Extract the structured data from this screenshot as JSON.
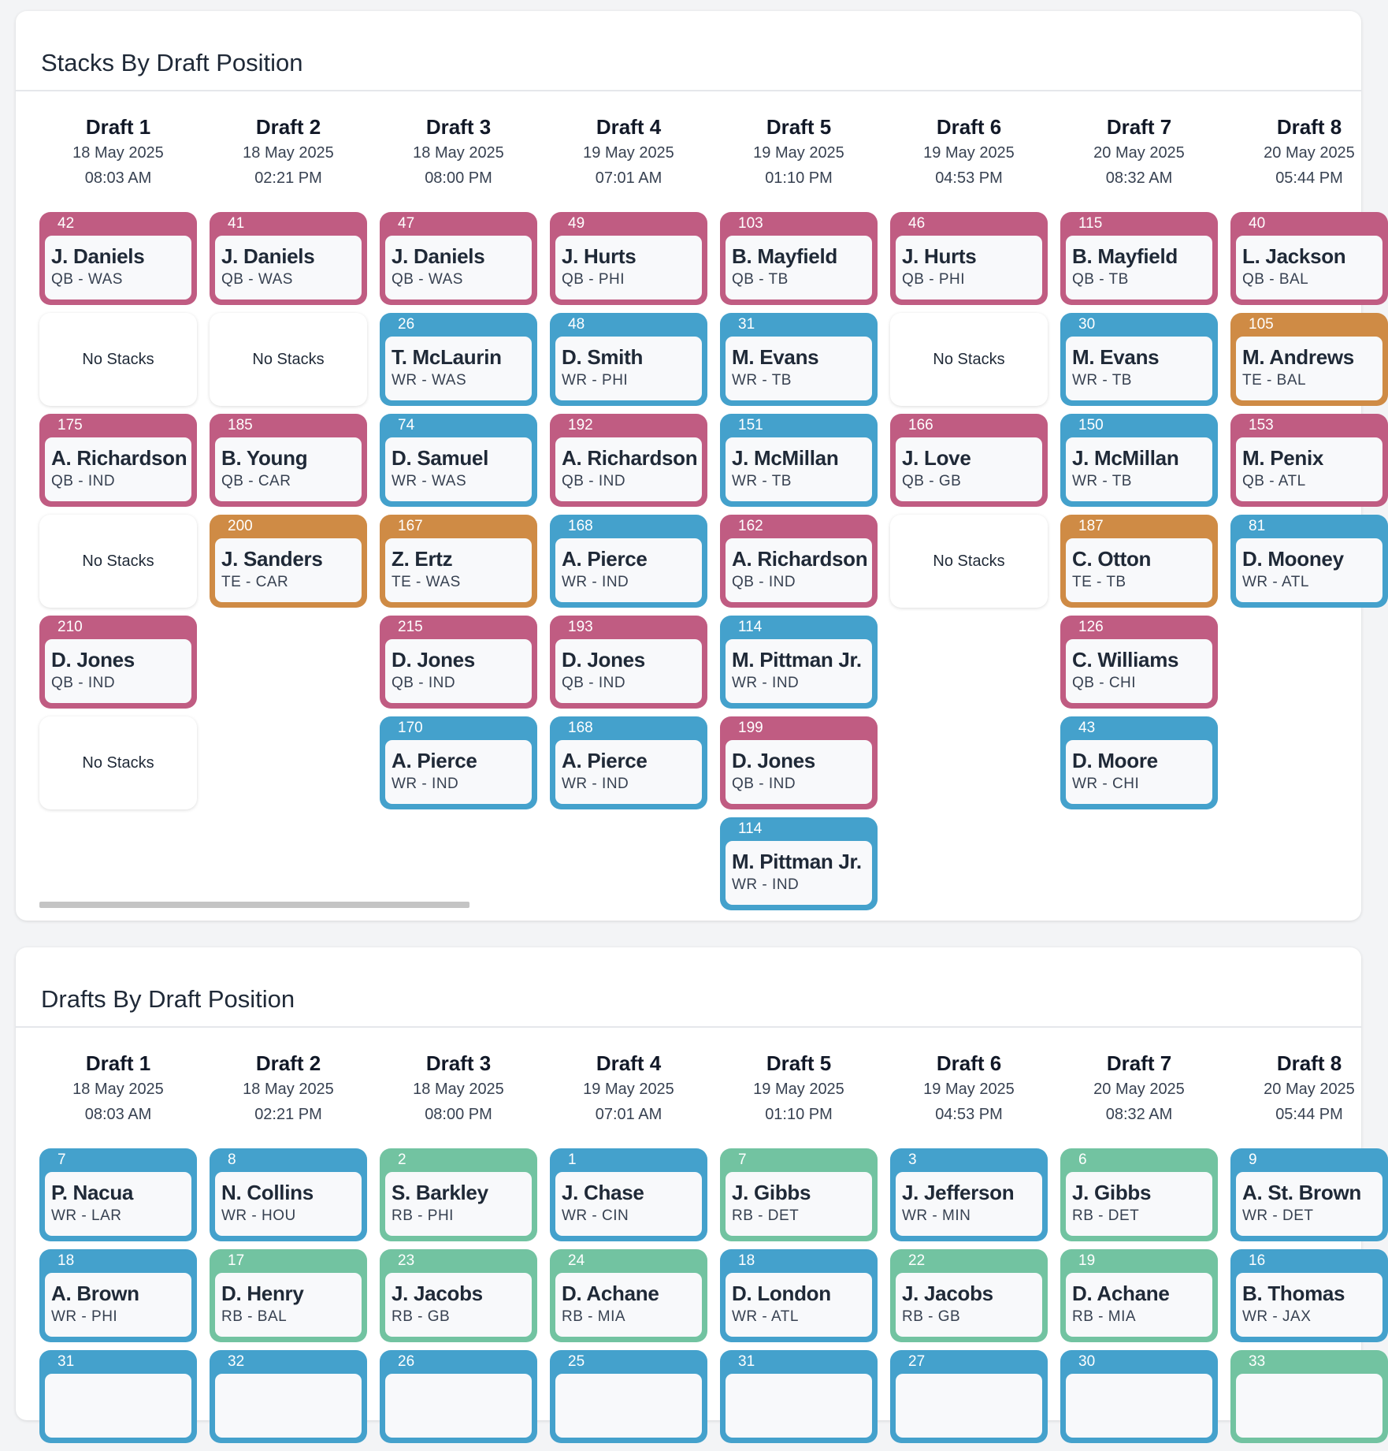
{
  "colors": {
    "QB": "#c05c82",
    "WR": "#44a1cc",
    "TE": "#cf8b45",
    "RB": "#72c3a1"
  },
  "stacks": {
    "title": "Stacks By Draft Position",
    "columns": [
      {
        "title": "Draft 1",
        "date": "18 May 2025",
        "time": "08:03 AM",
        "cards": [
          {
            "pick": "42",
            "name": "J. Daniels",
            "pos": "QB - WAS",
            "type": "QB"
          },
          {
            "type": "none",
            "label": "No Stacks"
          },
          {
            "pick": "175",
            "name": "A. Richardson",
            "pos": "QB - IND",
            "type": "QB"
          },
          {
            "type": "none",
            "label": "No Stacks"
          },
          {
            "pick": "210",
            "name": "D. Jones",
            "pos": "QB - IND",
            "type": "QB"
          },
          {
            "type": "none",
            "label": "No Stacks"
          }
        ]
      },
      {
        "title": "Draft 2",
        "date": "18 May 2025",
        "time": "02:21 PM",
        "cards": [
          {
            "pick": "41",
            "name": "J. Daniels",
            "pos": "QB - WAS",
            "type": "QB"
          },
          {
            "type": "none",
            "label": "No Stacks"
          },
          {
            "pick": "185",
            "name": "B. Young",
            "pos": "QB - CAR",
            "type": "QB"
          },
          {
            "pick": "200",
            "name": "J. Sanders",
            "pos": "TE - CAR",
            "type": "TE"
          }
        ]
      },
      {
        "title": "Draft 3",
        "date": "18 May 2025",
        "time": "08:00 PM",
        "cards": [
          {
            "pick": "47",
            "name": "J. Daniels",
            "pos": "QB - WAS",
            "type": "QB"
          },
          {
            "pick": "26",
            "name": "T. McLaurin",
            "pos": "WR - WAS",
            "type": "WR"
          },
          {
            "pick": "74",
            "name": "D. Samuel",
            "pos": "WR - WAS",
            "type": "WR"
          },
          {
            "pick": "167",
            "name": "Z. Ertz",
            "pos": "TE - WAS",
            "type": "TE"
          },
          {
            "pick": "215",
            "name": "D. Jones",
            "pos": "QB - IND",
            "type": "QB"
          },
          {
            "pick": "170",
            "name": "A. Pierce",
            "pos": "WR - IND",
            "type": "WR"
          }
        ]
      },
      {
        "title": "Draft 4",
        "date": "19 May 2025",
        "time": "07:01 AM",
        "cards": [
          {
            "pick": "49",
            "name": "J. Hurts",
            "pos": "QB - PHI",
            "type": "QB"
          },
          {
            "pick": "48",
            "name": "D. Smith",
            "pos": "WR - PHI",
            "type": "WR"
          },
          {
            "pick": "192",
            "name": "A. Richardson",
            "pos": "QB - IND",
            "type": "QB"
          },
          {
            "pick": "168",
            "name": "A. Pierce",
            "pos": "WR - IND",
            "type": "WR"
          },
          {
            "pick": "193",
            "name": "D. Jones",
            "pos": "QB - IND",
            "type": "QB"
          },
          {
            "pick": "168",
            "name": "A. Pierce",
            "pos": "WR - IND",
            "type": "WR"
          }
        ]
      },
      {
        "title": "Draft 5",
        "date": "19 May 2025",
        "time": "01:10 PM",
        "cards": [
          {
            "pick": "103",
            "name": "B. Mayfield",
            "pos": "QB - TB",
            "type": "QB"
          },
          {
            "pick": "31",
            "name": "M. Evans",
            "pos": "WR - TB",
            "type": "WR"
          },
          {
            "pick": "151",
            "name": "J. McMillan",
            "pos": "WR - TB",
            "type": "WR"
          },
          {
            "pick": "162",
            "name": "A. Richardson",
            "pos": "QB - IND",
            "type": "QB"
          },
          {
            "pick": "114",
            "name": "M. Pittman Jr.",
            "pos": "WR - IND",
            "type": "WR"
          },
          {
            "pick": "199",
            "name": "D. Jones",
            "pos": "QB - IND",
            "type": "QB"
          },
          {
            "pick": "114",
            "name": "M. Pittman Jr.",
            "pos": "WR - IND",
            "type": "WR"
          }
        ]
      },
      {
        "title": "Draft 6",
        "date": "19 May 2025",
        "time": "04:53 PM",
        "cards": [
          {
            "pick": "46",
            "name": "J. Hurts",
            "pos": "QB - PHI",
            "type": "QB"
          },
          {
            "type": "none",
            "label": "No Stacks"
          },
          {
            "pick": "166",
            "name": "J. Love",
            "pos": "QB - GB",
            "type": "QB"
          },
          {
            "type": "none",
            "label": "No Stacks"
          }
        ]
      },
      {
        "title": "Draft 7",
        "date": "20 May 2025",
        "time": "08:32 AM",
        "cards": [
          {
            "pick": "115",
            "name": "B. Mayfield",
            "pos": "QB - TB",
            "type": "QB"
          },
          {
            "pick": "30",
            "name": "M. Evans",
            "pos": "WR - TB",
            "type": "WR"
          },
          {
            "pick": "150",
            "name": "J. McMillan",
            "pos": "WR - TB",
            "type": "WR"
          },
          {
            "pick": "187",
            "name": "C. Otton",
            "pos": "TE - TB",
            "type": "TE"
          },
          {
            "pick": "126",
            "name": "C. Williams",
            "pos": "QB - CHI",
            "type": "QB"
          },
          {
            "pick": "43",
            "name": "D. Moore",
            "pos": "WR - CHI",
            "type": "WR"
          }
        ]
      },
      {
        "title": "Draft 8",
        "date": "20 May 2025",
        "time": "05:44 PM",
        "cards": [
          {
            "pick": "40",
            "name": "L. Jackson",
            "pos": "QB - BAL",
            "type": "QB"
          },
          {
            "pick": "105",
            "name": "M. Andrews",
            "pos": "TE - BAL",
            "type": "TE"
          },
          {
            "pick": "153",
            "name": "M. Penix",
            "pos": "QB - ATL",
            "type": "QB"
          },
          {
            "pick": "81",
            "name": "D. Mooney",
            "pos": "WR - ATL",
            "type": "WR"
          }
        ]
      }
    ]
  },
  "drafts": {
    "title": "Drafts By Draft Position",
    "columns": [
      {
        "title": "Draft 1",
        "date": "18 May 2025",
        "time": "08:03 AM",
        "cards": [
          {
            "pick": "7",
            "name": "P. Nacua",
            "pos": "WR - LAR",
            "type": "WR"
          },
          {
            "pick": "18",
            "name": "A. Brown",
            "pos": "WR - PHI",
            "type": "WR"
          },
          {
            "pick": "31",
            "name": "",
            "pos": "",
            "type": "WR"
          }
        ]
      },
      {
        "title": "Draft 2",
        "date": "18 May 2025",
        "time": "02:21 PM",
        "cards": [
          {
            "pick": "8",
            "name": "N. Collins",
            "pos": "WR - HOU",
            "type": "WR"
          },
          {
            "pick": "17",
            "name": "D. Henry",
            "pos": "RB - BAL",
            "type": "RB"
          },
          {
            "pick": "32",
            "name": "",
            "pos": "",
            "type": "WR"
          }
        ]
      },
      {
        "title": "Draft 3",
        "date": "18 May 2025",
        "time": "08:00 PM",
        "cards": [
          {
            "pick": "2",
            "name": "S. Barkley",
            "pos": "RB - PHI",
            "type": "RB"
          },
          {
            "pick": "23",
            "name": "J. Jacobs",
            "pos": "RB - GB",
            "type": "RB"
          },
          {
            "pick": "26",
            "name": "",
            "pos": "",
            "type": "WR"
          }
        ]
      },
      {
        "title": "Draft 4",
        "date": "19 May 2025",
        "time": "07:01 AM",
        "cards": [
          {
            "pick": "1",
            "name": "J. Chase",
            "pos": "WR - CIN",
            "type": "WR"
          },
          {
            "pick": "24",
            "name": "D. Achane",
            "pos": "RB - MIA",
            "type": "RB"
          },
          {
            "pick": "25",
            "name": "",
            "pos": "",
            "type": "WR"
          }
        ]
      },
      {
        "title": "Draft 5",
        "date": "19 May 2025",
        "time": "01:10 PM",
        "cards": [
          {
            "pick": "7",
            "name": "J. Gibbs",
            "pos": "RB - DET",
            "type": "RB"
          },
          {
            "pick": "18",
            "name": "D. London",
            "pos": "WR - ATL",
            "type": "WR"
          },
          {
            "pick": "31",
            "name": "",
            "pos": "",
            "type": "WR"
          }
        ]
      },
      {
        "title": "Draft 6",
        "date": "19 May 2025",
        "time": "04:53 PM",
        "cards": [
          {
            "pick": "3",
            "name": "J. Jefferson",
            "pos": "WR - MIN",
            "type": "WR"
          },
          {
            "pick": "22",
            "name": "J. Jacobs",
            "pos": "RB - GB",
            "type": "RB"
          },
          {
            "pick": "27",
            "name": "",
            "pos": "",
            "type": "WR"
          }
        ]
      },
      {
        "title": "Draft 7",
        "date": "20 May 2025",
        "time": "08:32 AM",
        "cards": [
          {
            "pick": "6",
            "name": "J. Gibbs",
            "pos": "RB - DET",
            "type": "RB"
          },
          {
            "pick": "19",
            "name": "D. Achane",
            "pos": "RB - MIA",
            "type": "RB"
          },
          {
            "pick": "30",
            "name": "",
            "pos": "",
            "type": "WR"
          }
        ]
      },
      {
        "title": "Draft 8",
        "date": "20 May 2025",
        "time": "05:44 PM",
        "cards": [
          {
            "pick": "9",
            "name": "A. St. Brown",
            "pos": "WR - DET",
            "type": "WR"
          },
          {
            "pick": "16",
            "name": "B. Thomas",
            "pos": "WR - JAX",
            "type": "WR"
          },
          {
            "pick": "33",
            "name": "",
            "pos": "",
            "type": "RB"
          }
        ]
      }
    ]
  }
}
